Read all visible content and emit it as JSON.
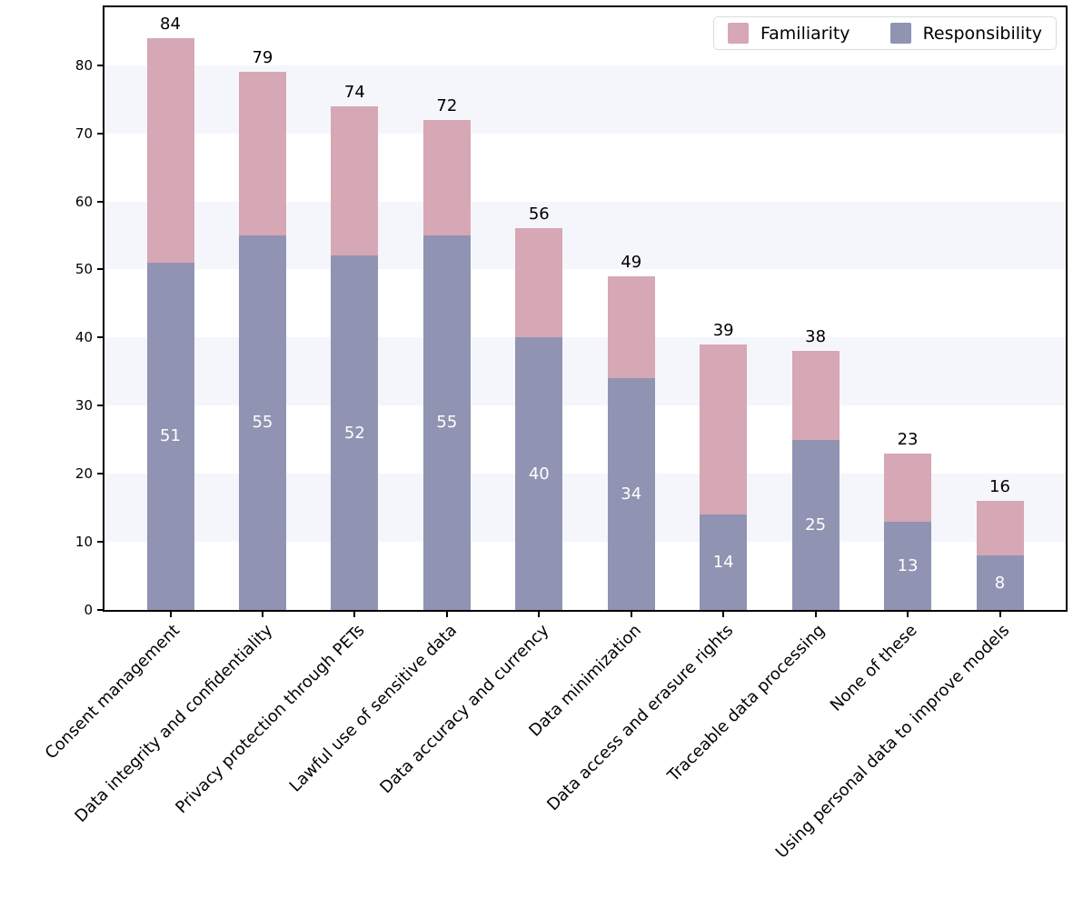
{
  "chart_data": {
    "type": "bar",
    "stacked": true,
    "title": "",
    "xlabel": "",
    "ylabel": "",
    "categories": [
      "Consent management",
      "Data integrity and confidentiality",
      "Privacy protection through PETs",
      "Lawful use of sensitive data",
      "Data accuracy and currency",
      "Data minimization",
      "Data access and erasure rights",
      "Traceable data processing",
      "None of these",
      "Using personal data to improve models"
    ],
    "series": [
      {
        "name": "Responsibility",
        "color": "#9094b2",
        "values": [
          51,
          55,
          52,
          55,
          40,
          34,
          14,
          25,
          13,
          8
        ],
        "value_label_color": "#ffffff"
      },
      {
        "name": "Familiarity",
        "color": "#d6a7b4",
        "values": [
          33,
          24,
          22,
          17,
          16,
          15,
          25,
          13,
          10,
          8
        ]
      }
    ],
    "totals": [
      84,
      79,
      74,
      72,
      56,
      49,
      39,
      38,
      23,
      16
    ],
    "yticks": [
      0,
      10,
      20,
      30,
      40,
      50,
      60,
      70,
      80
    ],
    "ylim": [
      0,
      88.5
    ],
    "bands": [
      [
        10,
        20
      ],
      [
        30,
        40
      ],
      [
        50,
        60
      ],
      [
        70,
        80
      ]
    ],
    "band_color": "#f5f6fb",
    "legend": {
      "position": "top-right",
      "entries": [
        {
          "label": "Familiarity",
          "color": "#d6a7b4"
        },
        {
          "label": "Responsibility",
          "color": "#9094b2"
        }
      ]
    }
  }
}
